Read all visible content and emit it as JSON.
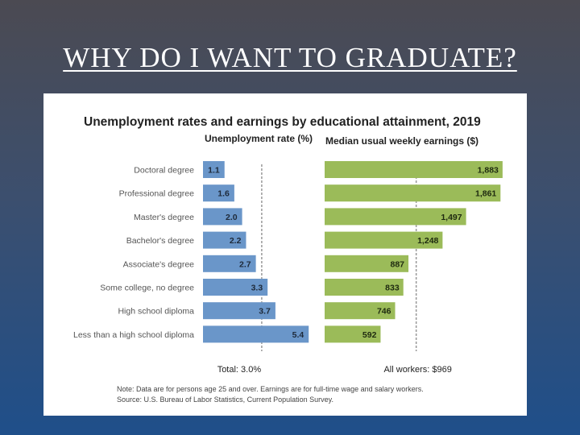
{
  "slide": {
    "title": "WHY DO I WANT TO GRADUATE?"
  },
  "chart_data": {
    "type": "bar",
    "title": "Unemployment rates and earnings by educational attainment, 2019",
    "categories": [
      "Doctoral degree",
      "Professional degree",
      "Master's degree",
      "Bachelor's degree",
      "Associate's degree",
      "Some college, no degree",
      "High school diploma",
      "Less than a high school diploma"
    ],
    "series": [
      {
        "name": "Unemployment rate (%)",
        "values": [
          1.1,
          1.6,
          2.0,
          2.2,
          2.7,
          3.3,
          3.7,
          5.4
        ],
        "labels": [
          "1.1",
          "1.6",
          "2.0",
          "2.2",
          "2.7",
          "3.3",
          "3.7",
          "5.4"
        ],
        "color": "#6a96c9",
        "reference_value": 3.0,
        "reference_label": "Total: 3.0%"
      },
      {
        "name": "Median usual weekly earnings ($)",
        "values": [
          1883,
          1861,
          1497,
          1248,
          887,
          833,
          746,
          592
        ],
        "labels": [
          "1,883",
          "1,861",
          "1,497",
          "1,248",
          "887",
          "833",
          "746",
          "592"
        ],
        "color": "#9bbb59",
        "reference_value": 969,
        "reference_label": "All workers: $969"
      }
    ],
    "note": "Note: Data are for persons age 25 and over. Earnings are for full-time wage and salary workers.",
    "source": "Source: U.S. Bureau of Labor Statistics, Current Population Survey."
  }
}
